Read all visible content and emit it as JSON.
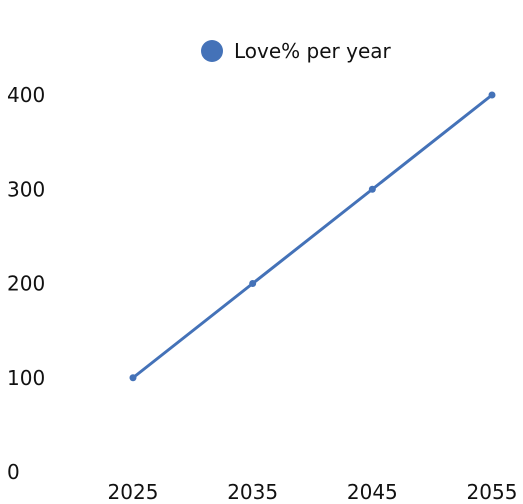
{
  "chart_data": {
    "type": "line",
    "title": "",
    "xlabel": "",
    "ylabel": "",
    "x": [
      2025,
      2035,
      2045,
      2055
    ],
    "x_ticks": [
      "2025",
      "2035",
      "2045",
      "2055"
    ],
    "y_ticks": [
      "0",
      "100",
      "200",
      "300",
      "400"
    ],
    "ylim": [
      0,
      400
    ],
    "grid": false,
    "legend_position": "top-center",
    "series": [
      {
        "name": "Love% per year",
        "values": [
          100,
          200,
          300,
          400
        ],
        "color": "#4472b8"
      }
    ]
  }
}
